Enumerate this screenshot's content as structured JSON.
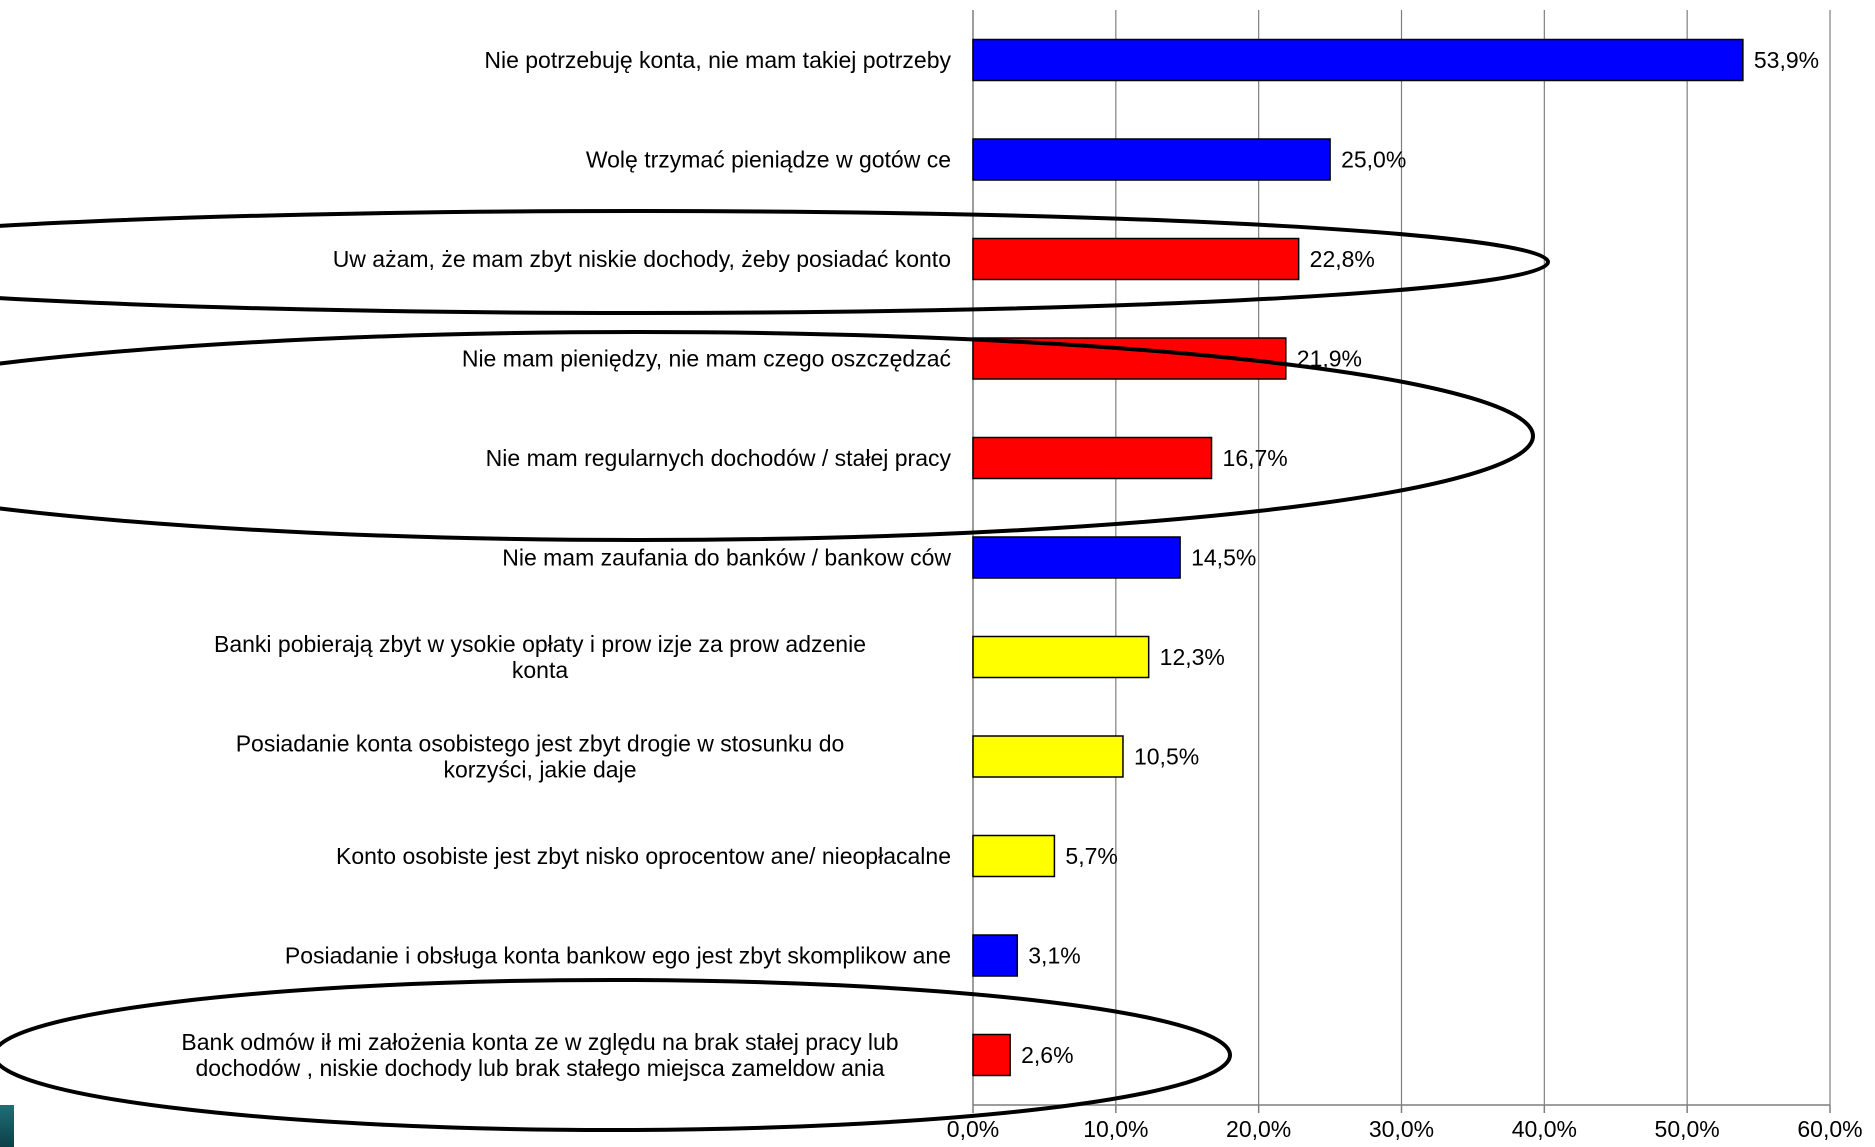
{
  "chart_data": {
    "type": "bar",
    "orientation": "horizontal",
    "categories": [
      "Nie potrzebuję konta, nie mam takiej potrzeby",
      "Wolę trzymać pieniądze w  gotów ce",
      "Uw ażam, że mam zbyt niskie dochody, żeby posiadać konto",
      "Nie mam pieniędzy, nie mam czego oszczędzać",
      "Nie mam regularnych dochodów / stałej pracy",
      "Nie mam zaufania do banków / bankow ców",
      "Banki pobierają zbyt w ysokie opłaty i prow izje za prow adzenie konta",
      "Posiadanie konta osobistego jest zbyt drogie w  stosunku do korzyści, jakie daje",
      "Konto osobiste jest zbyt nisko oprocentow ane/ nieopłacalne",
      "Posiadanie i obsługa konta bankow ego jest zbyt skomplikow ane",
      "Bank odmów ił mi założenia konta ze w zględu na brak stałej pracy lub dochodów , niskie dochody lub brak stałego miejsca zameldow ania"
    ],
    "category_lines": [
      [
        "Nie potrzebuję konta, nie mam takiej potrzeby"
      ],
      [
        "Wolę trzymać pieniądze w  gotów ce"
      ],
      [
        "Uw ażam, że mam zbyt niskie dochody, żeby posiadać konto"
      ],
      [
        "Nie mam pieniędzy, nie mam czego oszczędzać"
      ],
      [
        "Nie mam regularnych dochodów / stałej pracy"
      ],
      [
        "Nie mam zaufania do banków / bankow ców"
      ],
      [
        "Banki pobierają zbyt w ysokie opłaty i prow izje za prow adzenie",
        "konta"
      ],
      [
        "Posiadanie konta osobistego jest zbyt drogie w  stosunku do",
        "korzyści, jakie daje"
      ],
      [
        "Konto osobiste jest zbyt nisko oprocentow ane/ nieopłacalne"
      ],
      [
        "Posiadanie i obsługa konta bankow ego jest zbyt skomplikow ane"
      ],
      [
        "Bank odmów ił mi założenia konta ze w zględu na brak stałej pracy lub",
        "dochodów , niskie dochody lub brak stałego miejsca zameldow ania"
      ]
    ],
    "values": [
      53.9,
      25.0,
      22.8,
      21.9,
      16.7,
      14.5,
      12.3,
      10.5,
      5.7,
      3.1,
      2.6
    ],
    "value_labels": [
      "53,9%",
      "25,0%",
      "22,8%",
      "21,9%",
      "16,7%",
      "14,5%",
      "12,3%",
      "10,5%",
      "5,7%",
      "3,1%",
      "2,6%"
    ],
    "bar_colors": [
      "#0000ff",
      "#0000ff",
      "#ff0000",
      "#ff0000",
      "#ff0000",
      "#0000ff",
      "#ffff00",
      "#ffff00",
      "#ffff00",
      "#0000ff",
      "#ff0000"
    ],
    "xlim": [
      0,
      60
    ],
    "xticks": [
      0,
      10,
      20,
      30,
      40,
      50,
      60
    ],
    "xtick_labels": [
      "0,0%",
      "10,0%",
      "20,0%",
      "30,0%",
      "40,0%",
      "50,0%",
      "60,0%"
    ],
    "grid": "vertical",
    "legend": "none",
    "title": "",
    "xlabel": "",
    "ylabel": "",
    "highlight_ellipses": [
      {
        "encloses_categories": [
          2
        ]
      },
      {
        "encloses_categories": [
          3,
          4
        ]
      },
      {
        "encloses_categories": [
          10
        ]
      }
    ]
  }
}
